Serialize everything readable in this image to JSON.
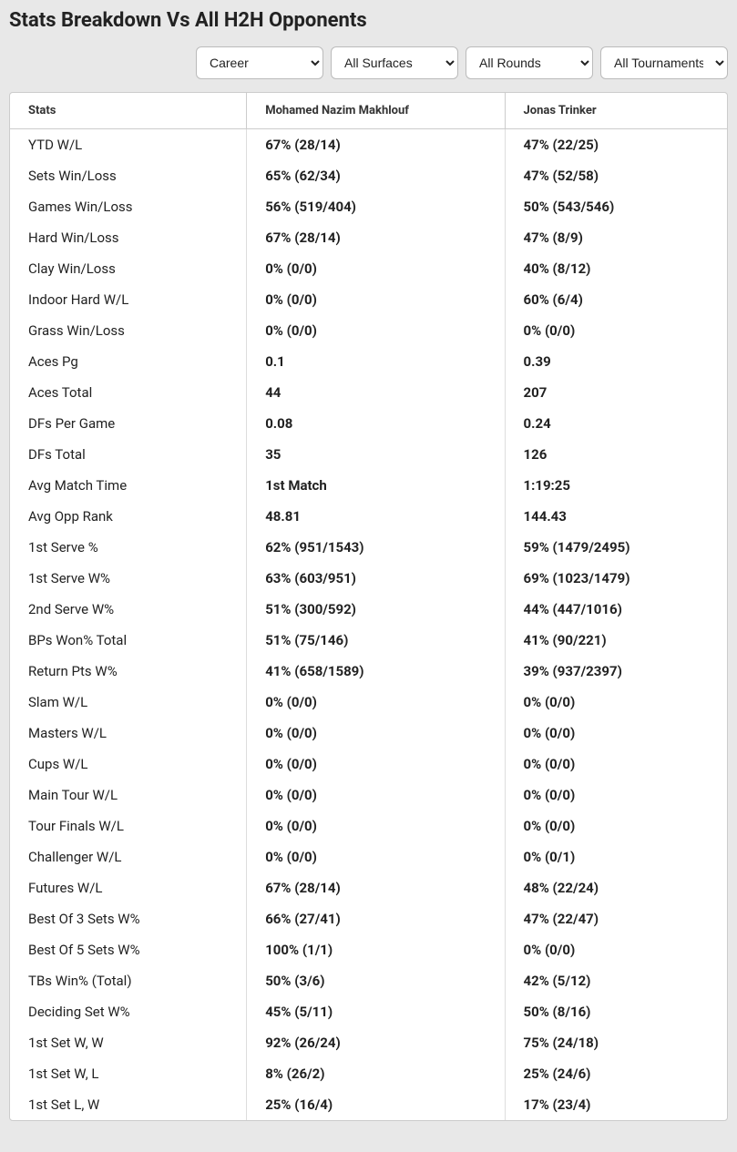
{
  "title": "Stats Breakdown Vs All H2H Opponents",
  "filters": {
    "period": {
      "selected": "Career",
      "options": [
        "Career"
      ]
    },
    "surface": {
      "selected": "All Surfaces",
      "options": [
        "All Surfaces"
      ]
    },
    "round": {
      "selected": "All Rounds",
      "options": [
        "All Rounds"
      ]
    },
    "tournament": {
      "selected": "All Tournaments",
      "options": [
        "All Tournaments"
      ]
    }
  },
  "table": {
    "headers": {
      "stats": "Stats",
      "player1": "Mohamed Nazim Makhlouf",
      "player2": "Jonas Trinker"
    },
    "rows": [
      {
        "label": "YTD W/L",
        "p1": "67% (28/14)",
        "p2": "47% (22/25)"
      },
      {
        "label": "Sets Win/Loss",
        "p1": "65% (62/34)",
        "p2": "47% (52/58)"
      },
      {
        "label": "Games Win/Loss",
        "p1": "56% (519/404)",
        "p2": "50% (543/546)"
      },
      {
        "label": "Hard Win/Loss",
        "p1": "67% (28/14)",
        "p2": "47% (8/9)"
      },
      {
        "label": "Clay Win/Loss",
        "p1": "0% (0/0)",
        "p2": "40% (8/12)"
      },
      {
        "label": "Indoor Hard W/L",
        "p1": "0% (0/0)",
        "p2": "60% (6/4)"
      },
      {
        "label": "Grass Win/Loss",
        "p1": "0% (0/0)",
        "p2": "0% (0/0)"
      },
      {
        "label": "Aces Pg",
        "p1": "0.1",
        "p2": "0.39"
      },
      {
        "label": "Aces Total",
        "p1": "44",
        "p2": "207"
      },
      {
        "label": "DFs Per Game",
        "p1": "0.08",
        "p2": "0.24"
      },
      {
        "label": "DFs Total",
        "p1": "35",
        "p2": "126"
      },
      {
        "label": "Avg Match Time",
        "p1": "1st Match",
        "p2": "1:19:25"
      },
      {
        "label": "Avg Opp Rank",
        "p1": "48.81",
        "p2": "144.43"
      },
      {
        "label": "1st Serve %",
        "p1": "62% (951/1543)",
        "p2": "59% (1479/2495)"
      },
      {
        "label": "1st Serve W%",
        "p1": "63% (603/951)",
        "p2": "69% (1023/1479)"
      },
      {
        "label": "2nd Serve W%",
        "p1": "51% (300/592)",
        "p2": "44% (447/1016)"
      },
      {
        "label": "BPs Won% Total",
        "p1": "51% (75/146)",
        "p2": "41% (90/221)"
      },
      {
        "label": "Return Pts W%",
        "p1": "41% (658/1589)",
        "p2": "39% (937/2397)"
      },
      {
        "label": "Slam W/L",
        "p1": "0% (0/0)",
        "p2": "0% (0/0)"
      },
      {
        "label": "Masters W/L",
        "p1": "0% (0/0)",
        "p2": "0% (0/0)"
      },
      {
        "label": "Cups W/L",
        "p1": "0% (0/0)",
        "p2": "0% (0/0)"
      },
      {
        "label": "Main Tour W/L",
        "p1": "0% (0/0)",
        "p2": "0% (0/0)"
      },
      {
        "label": "Tour Finals W/L",
        "p1": "0% (0/0)",
        "p2": "0% (0/0)"
      },
      {
        "label": "Challenger W/L",
        "p1": "0% (0/0)",
        "p2": "0% (0/1)"
      },
      {
        "label": "Futures W/L",
        "p1": "67% (28/14)",
        "p2": "48% (22/24)"
      },
      {
        "label": "Best Of 3 Sets W%",
        "p1": "66% (27/41)",
        "p2": "47% (22/47)"
      },
      {
        "label": "Best Of 5 Sets W%",
        "p1": "100% (1/1)",
        "p2": "0% (0/0)"
      },
      {
        "label": "TBs Win% (Total)",
        "p1": "50% (3/6)",
        "p2": "42% (5/12)"
      },
      {
        "label": "Deciding Set W%",
        "p1": "45% (5/11)",
        "p2": "50% (8/16)"
      },
      {
        "label": "1st Set W, W",
        "p1": "92% (26/24)",
        "p2": "75% (24/18)"
      },
      {
        "label": "1st Set W, L",
        "p1": "8% (26/2)",
        "p2": "25% (24/6)"
      },
      {
        "label": "1st Set L, W",
        "p1": "25% (16/4)",
        "p2": "17% (23/4)"
      }
    ]
  }
}
